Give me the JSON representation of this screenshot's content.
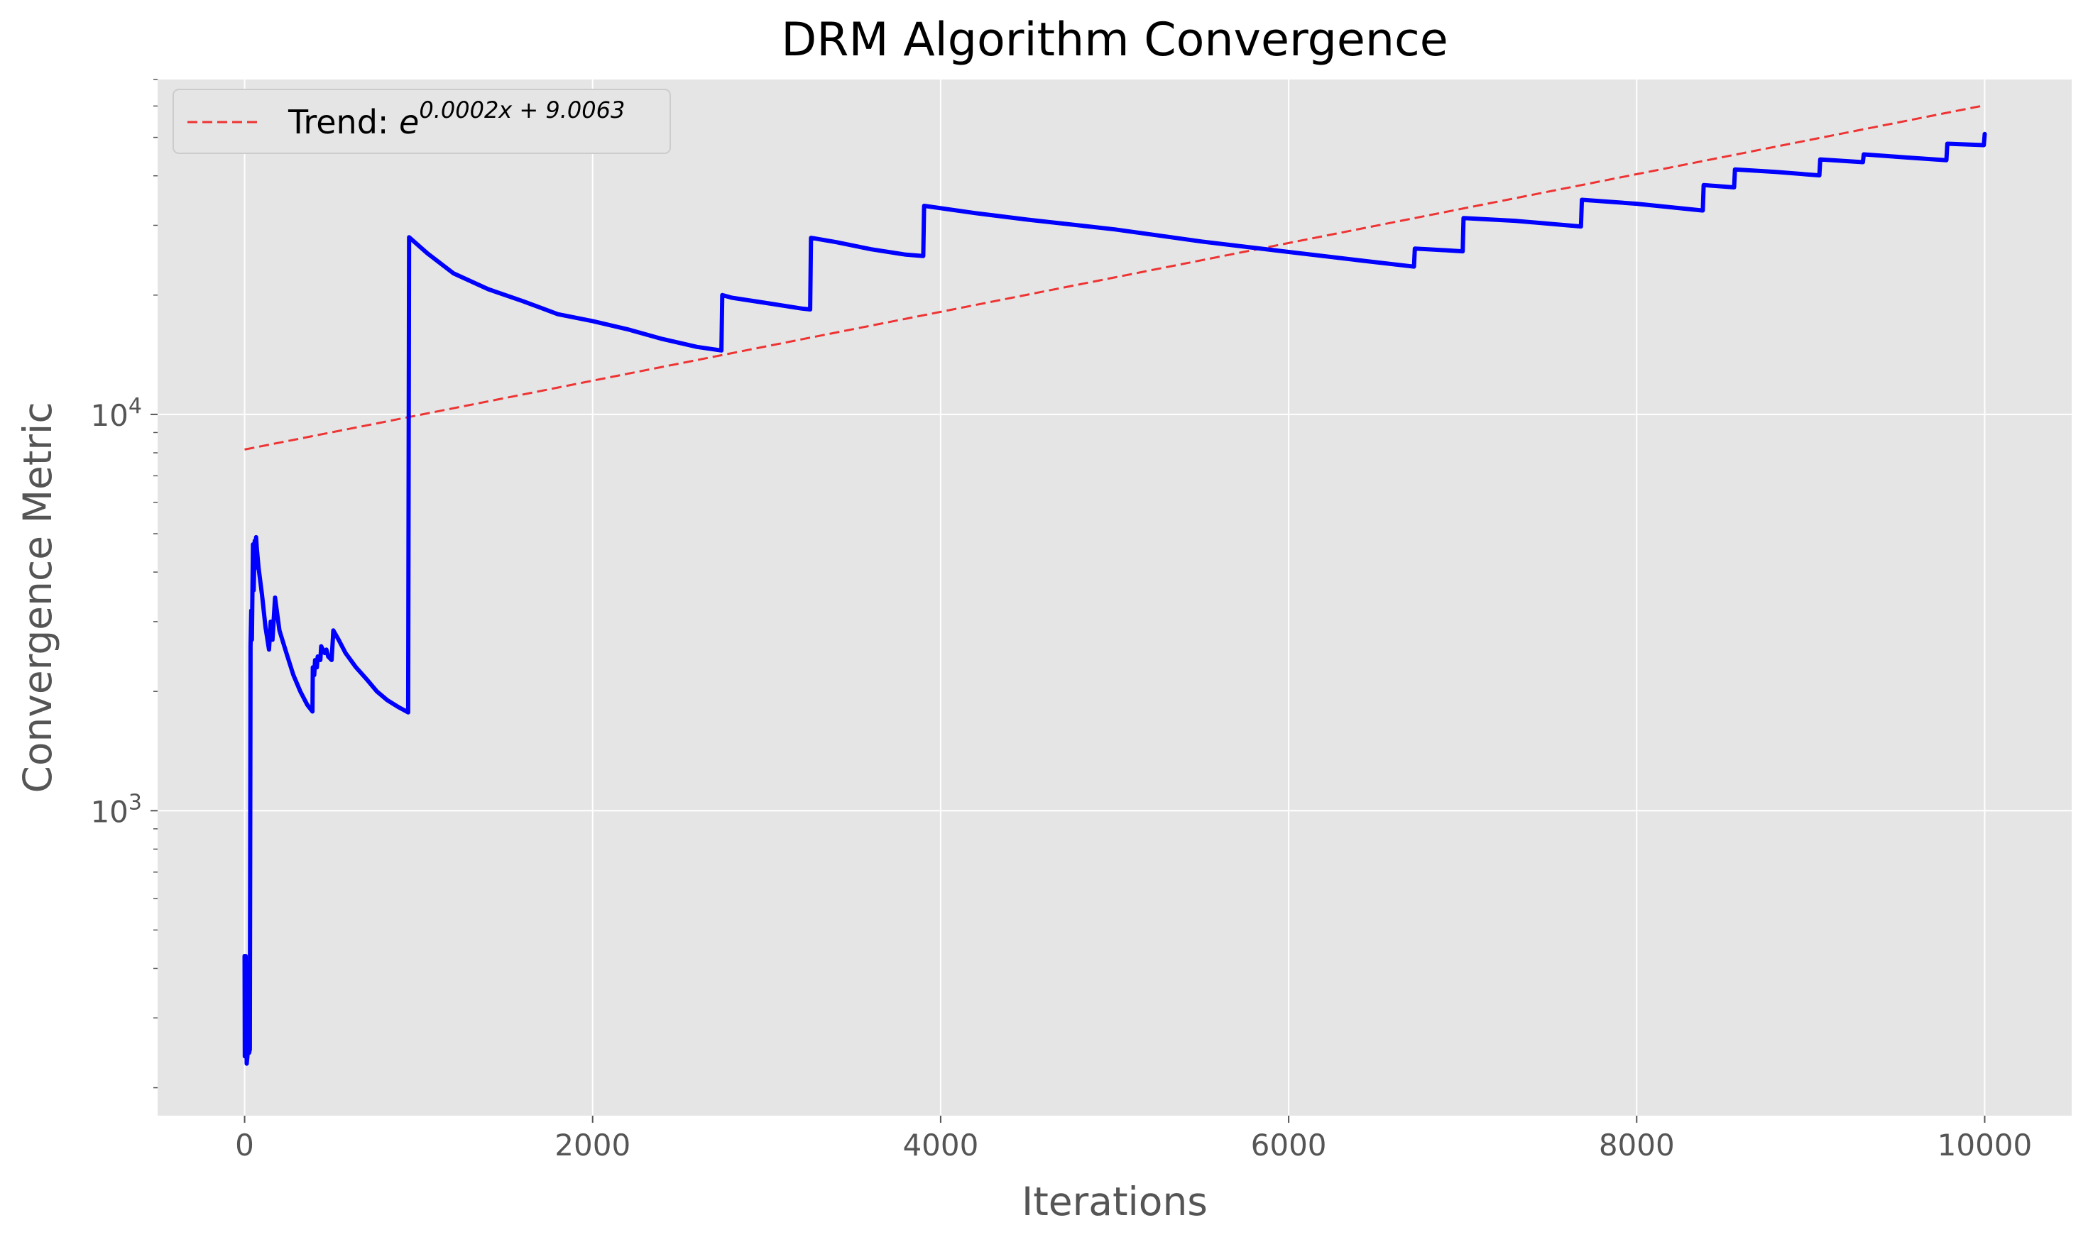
{
  "chart_data": {
    "type": "line",
    "title": "DRM Algorithm Convergence",
    "xlabel": "Iterations",
    "ylabel": "Convergence Metric",
    "xlim": [
      -500,
      10500
    ],
    "ylim": [
      170,
      70000
    ],
    "yscale": "log",
    "grid": true,
    "legend_position": "top-left",
    "xticks": [
      0,
      2000,
      4000,
      6000,
      8000,
      10000
    ],
    "xtick_labels": [
      "0",
      "2000",
      "4000",
      "6000",
      "8000",
      "10000"
    ],
    "yticks": [
      1000,
      10000
    ],
    "ytick_labels": [
      {
        "base": "10",
        "exp": "3"
      },
      {
        "base": "10",
        "exp": "4"
      }
    ],
    "series": [
      {
        "color": "#0000ff",
        "style": "solid",
        "points": [
          [
            0,
            430
          ],
          [
            1,
            240
          ],
          [
            6,
            430
          ],
          [
            12,
            230
          ],
          [
            20,
            250
          ],
          [
            26,
            245
          ],
          [
            30,
            250
          ],
          [
            34,
            2600
          ],
          [
            38,
            3200
          ],
          [
            42,
            2700
          ],
          [
            48,
            4700
          ],
          [
            52,
            3600
          ],
          [
            58,
            4800
          ],
          [
            62,
            4100
          ],
          [
            66,
            4900
          ],
          [
            70,
            4600
          ],
          [
            80,
            4100
          ],
          [
            100,
            3500
          ],
          [
            120,
            2900
          ],
          [
            140,
            2550
          ],
          [
            150,
            3000
          ],
          [
            160,
            2700
          ],
          [
            175,
            3450
          ],
          [
            200,
            2850
          ],
          [
            240,
            2500
          ],
          [
            280,
            2200
          ],
          [
            320,
            2000
          ],
          [
            360,
            1850
          ],
          [
            390,
            1780
          ],
          [
            392,
            2300
          ],
          [
            400,
            2200
          ],
          [
            405,
            2400
          ],
          [
            415,
            2300
          ],
          [
            420,
            2450
          ],
          [
            435,
            2400
          ],
          [
            440,
            2600
          ],
          [
            460,
            2500
          ],
          [
            470,
            2550
          ],
          [
            480,
            2450
          ],
          [
            500,
            2400
          ],
          [
            510,
            2850
          ],
          [
            540,
            2700
          ],
          [
            580,
            2500
          ],
          [
            640,
            2300
          ],
          [
            700,
            2150
          ],
          [
            760,
            2000
          ],
          [
            820,
            1900
          ],
          [
            880,
            1830
          ],
          [
            940,
            1770
          ],
          [
            945,
            28000
          ],
          [
            1050,
            25500
          ],
          [
            1200,
            22700
          ],
          [
            1400,
            20700
          ],
          [
            1600,
            19300
          ],
          [
            1800,
            17900
          ],
          [
            2000,
            17200
          ],
          [
            2200,
            16400
          ],
          [
            2400,
            15500
          ],
          [
            2600,
            14800
          ],
          [
            2740,
            14500
          ],
          [
            2745,
            20000
          ],
          [
            2800,
            19700
          ],
          [
            3000,
            19100
          ],
          [
            3200,
            18500
          ],
          [
            3250,
            18400
          ],
          [
            3255,
            27900
          ],
          [
            3400,
            27200
          ],
          [
            3600,
            26100
          ],
          [
            3800,
            25300
          ],
          [
            3900,
            25100
          ],
          [
            3905,
            33600
          ],
          [
            4200,
            32200
          ],
          [
            4500,
            31000
          ],
          [
            5000,
            29300
          ],
          [
            5500,
            27300
          ],
          [
            6000,
            25700
          ],
          [
            6400,
            24500
          ],
          [
            6720,
            23600
          ],
          [
            6725,
            26200
          ],
          [
            6800,
            26100
          ],
          [
            7000,
            25800
          ],
          [
            7005,
            31300
          ],
          [
            7300,
            30800
          ],
          [
            7680,
            29800
          ],
          [
            7685,
            34800
          ],
          [
            8000,
            34000
          ],
          [
            8380,
            32700
          ],
          [
            8385,
            37900
          ],
          [
            8560,
            37400
          ],
          [
            8565,
            41500
          ],
          [
            8800,
            40900
          ],
          [
            9050,
            40100
          ],
          [
            9055,
            44000
          ],
          [
            9300,
            43300
          ],
          [
            9305,
            45300
          ],
          [
            9550,
            44500
          ],
          [
            9780,
            43800
          ],
          [
            9785,
            48200
          ],
          [
            9995,
            47800
          ],
          [
            10000,
            51000
          ]
        ]
      },
      {
        "name": "Trend: e^{0.0002x + 9.0063}",
        "legend_prefix": "Trend: ",
        "legend_base": "e",
        "legend_exponent": "0.0002x + 9.0063",
        "color": "#ee3333",
        "style": "dashed",
        "slope": 0.0002,
        "intercept": 9.0063,
        "x_range": [
          0,
          10000
        ]
      }
    ]
  }
}
